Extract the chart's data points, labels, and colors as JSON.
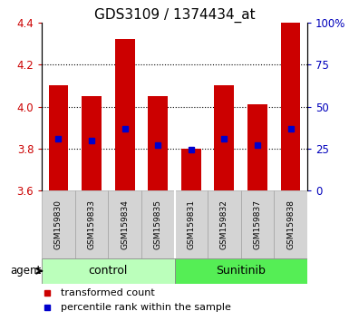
{
  "title": "GDS3109 / 1374434_at",
  "samples": [
    "GSM159830",
    "GSM159833",
    "GSM159834",
    "GSM159835",
    "GSM159831",
    "GSM159832",
    "GSM159837",
    "GSM159838"
  ],
  "bar_values": [
    4.1,
    4.05,
    4.32,
    4.05,
    3.8,
    4.1,
    4.01,
    4.4
  ],
  "blue_markers": [
    3.845,
    3.84,
    3.895,
    3.815,
    3.795,
    3.845,
    3.815,
    3.895
  ],
  "bar_bottom": 3.6,
  "ylim": [
    3.6,
    4.4
  ],
  "yticks_left": [
    3.6,
    3.8,
    4.0,
    4.2,
    4.4
  ],
  "yticks_right": [
    0,
    25,
    50,
    75,
    100
  ],
  "ytick_labels_right": [
    "0",
    "25",
    "50",
    "75",
    "100%"
  ],
  "bar_color": "#cc0000",
  "blue_color": "#0000cc",
  "bar_width": 0.6,
  "control_color": "#bbffbb",
  "sunitinib_color": "#55ee55",
  "agent_label": "agent",
  "legend_red": "transformed count",
  "legend_blue": "percentile rank within the sample",
  "left_tick_color": "#cc0000",
  "right_tick_color": "#0000bb",
  "grid_color": "#000000",
  "title_fontsize": 11,
  "tick_fontsize": 8.5,
  "sample_fontsize": 6.5,
  "group_fontsize": 9,
  "legend_fontsize": 8
}
